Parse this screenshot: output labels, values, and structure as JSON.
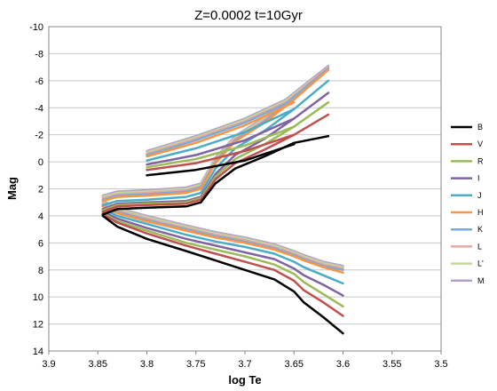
{
  "chart_data": {
    "type": "line",
    "title": "Z=0.0002   t=10Gyr",
    "xlabel": "log Te",
    "ylabel": "Mag",
    "xlim": [
      3.9,
      3.5
    ],
    "ylim": [
      14,
      -10
    ],
    "x_reversed": true,
    "y_reversed": true,
    "xticks": [
      "3.9",
      "3.85",
      "3.8",
      "3.75",
      "3.7",
      "3.65",
      "3.6",
      "3.55",
      "3.5"
    ],
    "yticks": [
      "-10",
      "-8",
      "-6",
      "-4",
      "-2",
      "0",
      "2",
      "4",
      "6",
      "8",
      "10",
      "12",
      "14"
    ],
    "grid": "horizontal",
    "legend": "right",
    "series": [
      {
        "name": "B",
        "color": "#000000",
        "ms": [
          [
            3.6,
            12.7
          ],
          [
            3.62,
            11.5
          ],
          [
            3.64,
            10.4
          ],
          [
            3.65,
            9.6
          ],
          [
            3.67,
            8.7
          ],
          [
            3.7,
            8.0
          ],
          [
            3.73,
            7.3
          ],
          [
            3.76,
            6.6
          ],
          [
            3.8,
            5.7
          ],
          [
            3.83,
            4.8
          ],
          [
            3.845,
            4.0
          ]
        ],
        "sg": [
          [
            3.845,
            3.9
          ],
          [
            3.83,
            3.5
          ],
          [
            3.8,
            3.4
          ],
          [
            3.76,
            3.3
          ],
          [
            3.745,
            3.0
          ]
        ],
        "rgb": [
          [
            3.745,
            3.0
          ],
          [
            3.73,
            1.6
          ],
          [
            3.71,
            0.5
          ],
          [
            3.68,
            -0.4
          ],
          [
            3.65,
            -1.4
          ],
          [
            3.615,
            -1.9
          ]
        ],
        "hb": [
          [
            3.8,
            1.0
          ],
          [
            3.75,
            0.6
          ],
          [
            3.7,
            -0.1
          ],
          [
            3.65,
            -1.3
          ]
        ]
      },
      {
        "name": "V",
        "color": "#c0504d",
        "ms": [
          [
            3.6,
            11.4
          ],
          [
            3.62,
            10.4
          ],
          [
            3.64,
            9.5
          ],
          [
            3.65,
            8.8
          ],
          [
            3.67,
            8.0
          ],
          [
            3.7,
            7.4
          ],
          [
            3.73,
            6.8
          ],
          [
            3.76,
            6.2
          ],
          [
            3.8,
            5.3
          ],
          [
            3.83,
            4.5
          ],
          [
            3.845,
            3.9
          ]
        ],
        "sg": [
          [
            3.845,
            3.7
          ],
          [
            3.83,
            3.3
          ],
          [
            3.8,
            3.2
          ],
          [
            3.76,
            3.1
          ],
          [
            3.745,
            2.8
          ]
        ],
        "rgb": [
          [
            3.745,
            2.8
          ],
          [
            3.73,
            1.3
          ],
          [
            3.71,
            0.1
          ],
          [
            3.68,
            -0.9
          ],
          [
            3.65,
            -2.0
          ],
          [
            3.615,
            -3.5
          ]
        ],
        "hb": [
          [
            3.8,
            0.6
          ],
          [
            3.75,
            0.1
          ],
          [
            3.7,
            -0.8
          ],
          [
            3.65,
            -2.0
          ]
        ]
      },
      {
        "name": "R",
        "color": "#9bbb59",
        "ms": [
          [
            3.6,
            10.7
          ],
          [
            3.62,
            9.8
          ],
          [
            3.64,
            8.9
          ],
          [
            3.65,
            8.3
          ],
          [
            3.67,
            7.6
          ],
          [
            3.7,
            7.0
          ],
          [
            3.73,
            6.5
          ],
          [
            3.76,
            6.0
          ],
          [
            3.8,
            5.1
          ],
          [
            3.83,
            4.4
          ],
          [
            3.845,
            3.8
          ]
        ],
        "sg": [
          [
            3.845,
            3.6
          ],
          [
            3.83,
            3.2
          ],
          [
            3.8,
            3.1
          ],
          [
            3.76,
            3.0
          ],
          [
            3.745,
            2.7
          ]
        ],
        "rgb": [
          [
            3.745,
            2.7
          ],
          [
            3.73,
            1.1
          ],
          [
            3.71,
            -0.2
          ],
          [
            3.68,
            -1.3
          ],
          [
            3.65,
            -2.6
          ],
          [
            3.615,
            -4.4
          ]
        ],
        "hb": [
          [
            3.8,
            0.4
          ],
          [
            3.75,
            -0.2
          ],
          [
            3.7,
            -1.2
          ],
          [
            3.65,
            -2.6
          ]
        ]
      },
      {
        "name": "I",
        "color": "#8064a2",
        "ms": [
          [
            3.6,
            9.9
          ],
          [
            3.62,
            9.1
          ],
          [
            3.64,
            8.4
          ],
          [
            3.65,
            7.9
          ],
          [
            3.67,
            7.2
          ],
          [
            3.7,
            6.7
          ],
          [
            3.73,
            6.2
          ],
          [
            3.76,
            5.7
          ],
          [
            3.8,
            4.9
          ],
          [
            3.83,
            4.2
          ],
          [
            3.845,
            3.7
          ]
        ],
        "sg": [
          [
            3.845,
            3.5
          ],
          [
            3.83,
            3.1
          ],
          [
            3.8,
            3.0
          ],
          [
            3.76,
            2.9
          ],
          [
            3.745,
            2.6
          ]
        ],
        "rgb": [
          [
            3.745,
            2.6
          ],
          [
            3.73,
            0.9
          ],
          [
            3.71,
            -0.5
          ],
          [
            3.68,
            -1.7
          ],
          [
            3.65,
            -3.2
          ],
          [
            3.615,
            -5.1
          ]
        ],
        "hb": [
          [
            3.8,
            0.2
          ],
          [
            3.75,
            -0.5
          ],
          [
            3.7,
            -1.6
          ],
          [
            3.65,
            -3.2
          ]
        ]
      },
      {
        "name": "J",
        "color": "#4bacc6",
        "ms": [
          [
            3.6,
            9.0
          ],
          [
            3.62,
            8.4
          ],
          [
            3.64,
            7.8
          ],
          [
            3.65,
            7.4
          ],
          [
            3.67,
            6.8
          ],
          [
            3.7,
            6.3
          ],
          [
            3.73,
            5.9
          ],
          [
            3.76,
            5.4
          ],
          [
            3.8,
            4.6
          ],
          [
            3.83,
            4.0
          ],
          [
            3.845,
            3.5
          ]
        ],
        "sg": [
          [
            3.845,
            3.2
          ],
          [
            3.83,
            2.9
          ],
          [
            3.8,
            2.8
          ],
          [
            3.76,
            2.6
          ],
          [
            3.745,
            2.3
          ]
        ],
        "rgb": [
          [
            3.745,
            2.3
          ],
          [
            3.73,
            0.5
          ],
          [
            3.71,
            -1.0
          ],
          [
            3.68,
            -2.3
          ],
          [
            3.65,
            -3.9
          ],
          [
            3.615,
            -6.0
          ]
        ],
        "hb": [
          [
            3.8,
            -0.1
          ],
          [
            3.75,
            -1.0
          ],
          [
            3.7,
            -2.2
          ],
          [
            3.65,
            -3.9
          ]
        ]
      },
      {
        "name": "H",
        "color": "#f79646",
        "ms": [
          [
            3.6,
            8.2
          ],
          [
            3.62,
            7.8
          ],
          [
            3.64,
            7.3
          ],
          [
            3.65,
            7.0
          ],
          [
            3.67,
            6.5
          ],
          [
            3.7,
            6.0
          ],
          [
            3.73,
            5.6
          ],
          [
            3.76,
            5.1
          ],
          [
            3.8,
            4.4
          ],
          [
            3.83,
            3.8
          ],
          [
            3.845,
            3.3
          ]
        ],
        "sg": [
          [
            3.845,
            2.9
          ],
          [
            3.83,
            2.6
          ],
          [
            3.8,
            2.5
          ],
          [
            3.76,
            2.3
          ],
          [
            3.745,
            2.0
          ]
        ],
        "rgb": [
          [
            3.745,
            2.0
          ],
          [
            3.73,
            0.1
          ],
          [
            3.71,
            -1.5
          ],
          [
            3.68,
            -2.9
          ],
          [
            3.65,
            -4.6
          ],
          [
            3.615,
            -6.8
          ]
        ],
        "hb": [
          [
            3.8,
            -0.4
          ],
          [
            3.75,
            -1.4
          ],
          [
            3.7,
            -2.7
          ],
          [
            3.65,
            -4.4
          ]
        ]
      },
      {
        "name": "K",
        "color": "#7fa9d6",
        "ms": [
          [
            3.6,
            8.0
          ],
          [
            3.62,
            7.7
          ],
          [
            3.64,
            7.2
          ],
          [
            3.65,
            6.9
          ],
          [
            3.67,
            6.4
          ],
          [
            3.7,
            5.9
          ],
          [
            3.73,
            5.5
          ],
          [
            3.76,
            5.0
          ],
          [
            3.8,
            4.3
          ],
          [
            3.83,
            3.7
          ],
          [
            3.845,
            3.2
          ]
        ],
        "sg": [
          [
            3.845,
            2.8
          ],
          [
            3.83,
            2.5
          ],
          [
            3.8,
            2.4
          ],
          [
            3.76,
            2.2
          ],
          [
            3.745,
            1.9
          ]
        ],
        "rgb": [
          [
            3.745,
            1.9
          ],
          [
            3.73,
            0.0
          ],
          [
            3.71,
            -1.6
          ],
          [
            3.68,
            -3.0
          ],
          [
            3.65,
            -4.8
          ],
          [
            3.615,
            -6.9
          ]
        ],
        "hb": [
          [
            3.8,
            -0.5
          ],
          [
            3.75,
            -1.6
          ],
          [
            3.7,
            -2.9
          ],
          [
            3.65,
            -4.6
          ]
        ]
      },
      {
        "name": "L",
        "color": "#e6a8a3",
        "ms": [
          [
            3.6,
            7.9
          ],
          [
            3.62,
            7.6
          ],
          [
            3.64,
            7.1
          ],
          [
            3.65,
            6.8
          ],
          [
            3.67,
            6.3
          ],
          [
            3.7,
            5.8
          ],
          [
            3.73,
            5.4
          ],
          [
            3.76,
            4.9
          ],
          [
            3.8,
            4.2
          ],
          [
            3.83,
            3.6
          ],
          [
            3.845,
            3.1
          ]
        ],
        "sg": [
          [
            3.845,
            2.7
          ],
          [
            3.83,
            2.4
          ],
          [
            3.8,
            2.3
          ],
          [
            3.76,
            2.1
          ],
          [
            3.745,
            1.8
          ]
        ],
        "rgb": [
          [
            3.745,
            1.8
          ],
          [
            3.73,
            -0.1
          ],
          [
            3.71,
            -1.7
          ],
          [
            3.68,
            -3.1
          ],
          [
            3.65,
            -4.9
          ],
          [
            3.615,
            -7.0
          ]
        ],
        "hb": [
          [
            3.8,
            -0.6
          ],
          [
            3.75,
            -1.7
          ],
          [
            3.7,
            -3.0
          ],
          [
            3.65,
            -4.7
          ]
        ]
      },
      {
        "name": "L'",
        "color": "#c3d69b",
        "ms": [
          [
            3.6,
            7.8
          ],
          [
            3.62,
            7.5
          ],
          [
            3.64,
            7.0
          ],
          [
            3.65,
            6.7
          ],
          [
            3.67,
            6.2
          ],
          [
            3.7,
            5.7
          ],
          [
            3.73,
            5.3
          ],
          [
            3.76,
            4.8
          ],
          [
            3.8,
            4.1
          ],
          [
            3.83,
            3.5
          ],
          [
            3.845,
            3.0
          ]
        ],
        "sg": [
          [
            3.845,
            2.6
          ],
          [
            3.83,
            2.3
          ],
          [
            3.8,
            2.2
          ],
          [
            3.76,
            2.0
          ],
          [
            3.745,
            1.7
          ]
        ],
        "rgb": [
          [
            3.745,
            1.7
          ],
          [
            3.73,
            -0.2
          ],
          [
            3.71,
            -1.8
          ],
          [
            3.68,
            -3.2
          ],
          [
            3.65,
            -5.0
          ],
          [
            3.615,
            -7.0
          ]
        ],
        "hb": [
          [
            3.8,
            -0.7
          ],
          [
            3.75,
            -1.8
          ],
          [
            3.7,
            -3.1
          ],
          [
            3.65,
            -4.8
          ]
        ]
      },
      {
        "name": "M",
        "color": "#b3a2c7",
        "ms": [
          [
            3.6,
            7.7
          ],
          [
            3.62,
            7.4
          ],
          [
            3.64,
            6.9
          ],
          [
            3.65,
            6.6
          ],
          [
            3.67,
            6.1
          ],
          [
            3.7,
            5.6
          ],
          [
            3.73,
            5.2
          ],
          [
            3.76,
            4.7
          ],
          [
            3.8,
            4.0
          ],
          [
            3.83,
            3.4
          ],
          [
            3.845,
            2.9
          ]
        ],
        "sg": [
          [
            3.845,
            2.5
          ],
          [
            3.83,
            2.2
          ],
          [
            3.8,
            2.1
          ],
          [
            3.76,
            1.9
          ],
          [
            3.745,
            1.6
          ]
        ],
        "rgb": [
          [
            3.745,
            1.6
          ],
          [
            3.73,
            -0.3
          ],
          [
            3.71,
            -1.9
          ],
          [
            3.68,
            -3.3
          ],
          [
            3.65,
            -5.1
          ],
          [
            3.615,
            -7.1
          ]
        ],
        "hb": [
          [
            3.8,
            -0.8
          ],
          [
            3.75,
            -1.9
          ],
          [
            3.7,
            -3.2
          ],
          [
            3.65,
            -4.9
          ]
        ]
      }
    ]
  }
}
